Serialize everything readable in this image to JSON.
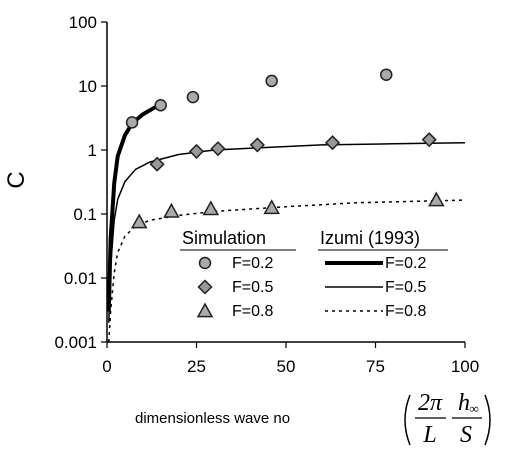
{
  "chart_data": {
    "type": "scatter",
    "title": "",
    "xlabel": "dimensionless wave no",
    "xlabel_formula": {
      "num1": "2π",
      "den1": "L",
      "num2": "h",
      "num2_sub": "∞",
      "den2": "S"
    },
    "ylabel": "C",
    "xlim": [
      0,
      100
    ],
    "ylim": [
      0.001,
      100
    ],
    "yscale": "log",
    "x_ticks": [
      "0",
      "25",
      "50",
      "75",
      "100"
    ],
    "y_ticks": [
      "0.001",
      "0.01",
      "0.1",
      "1",
      "10",
      "100"
    ],
    "grid": false,
    "legend": {
      "placement": "bottom-right",
      "header_left": "Simulation",
      "header_right": "Izumi (1993)"
    },
    "series": [
      {
        "name": "F=0.2",
        "marker": "circle",
        "points": [
          [
            7,
            2.7
          ],
          [
            15,
            5
          ],
          [
            24,
            6.7
          ],
          [
            46,
            12
          ],
          [
            78,
            15
          ]
        ]
      },
      {
        "name": "F=0.5",
        "marker": "diamond",
        "points": [
          [
            14,
            0.6
          ],
          [
            25,
            0.95
          ],
          [
            31,
            1.05
          ],
          [
            42,
            1.2
          ],
          [
            63,
            1.3
          ],
          [
            90,
            1.45
          ]
        ]
      },
      {
        "name": "F=0.8",
        "marker": "triangle",
        "points": [
          [
            9,
            0.075
          ],
          [
            18,
            0.11
          ],
          [
            29,
            0.12
          ],
          [
            46,
            0.125
          ],
          [
            92,
            0.165
          ]
        ]
      }
    ],
    "lines": [
      {
        "name": "F=0.2",
        "style": "thick",
        "points": [
          [
            0.5,
            0.003
          ],
          [
            1,
            0.04
          ],
          [
            2,
            0.3
          ],
          [
            3,
            0.8
          ],
          [
            5,
            1.7
          ],
          [
            7,
            2.6
          ],
          [
            10,
            3.6
          ],
          [
            13,
            4.5
          ],
          [
            15,
            5.2
          ]
        ]
      },
      {
        "name": "F=0.5",
        "style": "thin",
        "points": [
          [
            0.5,
            0.002
          ],
          [
            1,
            0.015
          ],
          [
            2,
            0.08
          ],
          [
            3,
            0.17
          ],
          [
            5,
            0.32
          ],
          [
            8,
            0.5
          ],
          [
            12,
            0.65
          ],
          [
            20,
            0.85
          ],
          [
            30,
            1.0
          ],
          [
            45,
            1.1
          ],
          [
            60,
            1.2
          ],
          [
            80,
            1.25
          ],
          [
            100,
            1.3
          ]
        ]
      },
      {
        "name": "F=0.8",
        "style": "dashed",
        "points": [
          [
            0.5,
            0.001
          ],
          [
            1,
            0.003
          ],
          [
            2,
            0.012
          ],
          [
            3,
            0.025
          ],
          [
            5,
            0.045
          ],
          [
            8,
            0.065
          ],
          [
            12,
            0.08
          ],
          [
            20,
            0.095
          ],
          [
            30,
            0.11
          ],
          [
            50,
            0.13
          ],
          [
            70,
            0.15
          ],
          [
            100,
            0.165
          ]
        ]
      }
    ]
  }
}
